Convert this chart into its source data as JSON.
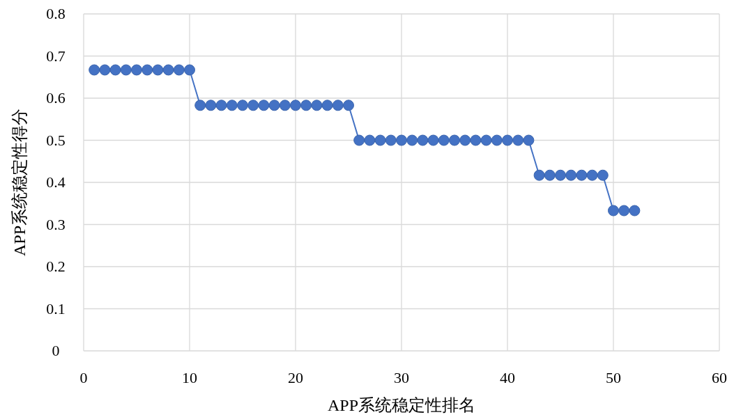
{
  "chart_data": {
    "type": "line",
    "xlabel": "APP系统稳定性排名",
    "ylabel": "APP系统稳定性得分",
    "x": [
      1,
      2,
      3,
      4,
      5,
      6,
      7,
      8,
      9,
      10,
      11,
      12,
      13,
      14,
      15,
      16,
      17,
      18,
      19,
      20,
      21,
      22,
      23,
      24,
      25,
      26,
      27,
      28,
      29,
      30,
      31,
      32,
      33,
      34,
      35,
      36,
      37,
      38,
      39,
      40,
      41,
      42,
      43,
      44,
      45,
      46,
      47,
      48,
      49,
      50,
      51,
      52
    ],
    "series": [
      {
        "color": "#4472c4",
        "values": [
          0.667,
          0.667,
          0.667,
          0.667,
          0.667,
          0.667,
          0.667,
          0.667,
          0.667,
          0.667,
          0.583,
          0.583,
          0.583,
          0.583,
          0.583,
          0.583,
          0.583,
          0.583,
          0.583,
          0.583,
          0.583,
          0.583,
          0.583,
          0.583,
          0.583,
          0.5,
          0.5,
          0.5,
          0.5,
          0.5,
          0.5,
          0.5,
          0.5,
          0.5,
          0.5,
          0.5,
          0.5,
          0.5,
          0.5,
          0.5,
          0.5,
          0.5,
          0.417,
          0.417,
          0.417,
          0.417,
          0.417,
          0.417,
          0.417,
          0.333,
          0.333,
          0.333
        ]
      }
    ],
    "xlim": [
      0,
      60
    ],
    "xticks": [
      0,
      10,
      20,
      30,
      40,
      50,
      60
    ],
    "ylim": [
      0,
      0.8
    ],
    "yticks": [
      0,
      0.1,
      0.2,
      0.3,
      0.4,
      0.5,
      0.6,
      0.7,
      0.8
    ],
    "grid": true,
    "marker": "circle",
    "line_style": "solid"
  }
}
